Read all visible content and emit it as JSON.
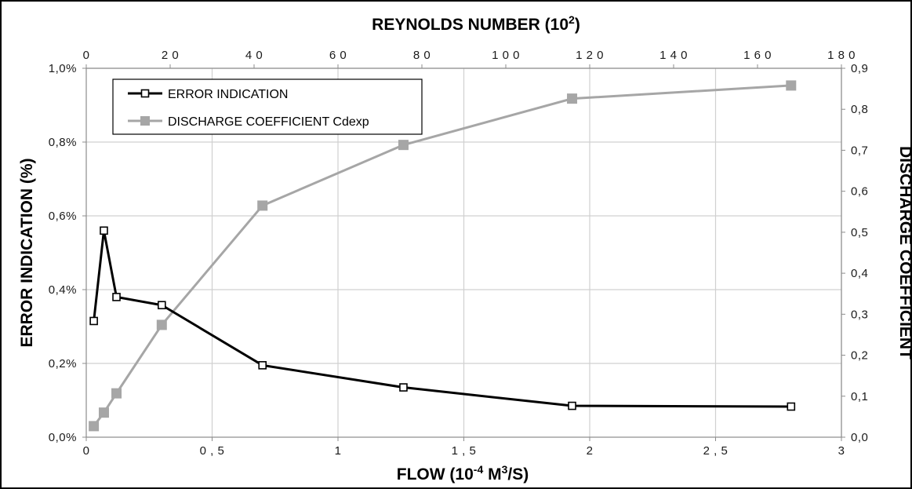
{
  "chart_data": {
    "type": "line",
    "title": "",
    "x_bottom": {
      "label": "FLOW (10-4 M3/S)",
      "label_parts": [
        "FLOW (10",
        "-4",
        " M",
        "3",
        "/S)"
      ],
      "range": [
        0,
        3
      ],
      "ticks": [
        0,
        0.5,
        1,
        1.5,
        2,
        2.5,
        3
      ],
      "tick_labels": [
        "0",
        "0 , 5",
        "1",
        "1 , 5",
        "2",
        "2 , 5",
        "3"
      ]
    },
    "x_top": {
      "label": "REYNOLDS NUMBER (102)",
      "label_parts": [
        "REYNOLDS NUMBER (10",
        "2",
        ")"
      ],
      "range": [
        0,
        180
      ],
      "ticks": [
        0,
        20,
        40,
        60,
        80,
        100,
        120,
        140,
        160,
        180
      ],
      "tick_labels": [
        "0",
        "2 0",
        "4 0",
        "6 0",
        "8 0",
        "1 0 0",
        "1 2 0",
        "1 4 0",
        "1 6 0",
        "1 8 0"
      ]
    },
    "y_left": {
      "label": "ERROR INDICATION (%)",
      "range": [
        0,
        1.0
      ],
      "ticks": [
        0,
        0.2,
        0.4,
        0.6,
        0.8,
        1.0
      ],
      "tick_labels": [
        "0,0%",
        "0,2%",
        "0,4%",
        "0,6%",
        "0,8%",
        "1,0%"
      ]
    },
    "y_right": {
      "label": "DISCHARGE COEFFICIENT",
      "range": [
        0,
        0.9
      ],
      "ticks": [
        0,
        0.1,
        0.2,
        0.3,
        0.4,
        0.5,
        0.6,
        0.7,
        0.8,
        0.9
      ],
      "tick_labels": [
        "0,0",
        "0,1",
        "0,2",
        "0,3",
        "0,4",
        "0,5",
        "0,6",
        "0,7",
        "0,8",
        "0,9"
      ]
    },
    "grid": true,
    "legend_position": "top-left",
    "series": [
      {
        "name": "ERROR INDICATION",
        "axis": "left",
        "color": "#000000",
        "marker": "hollow-square",
        "x": [
          0.03,
          0.07,
          0.12,
          0.3,
          0.7,
          1.26,
          1.93,
          2.8
        ],
        "y": [
          0.315,
          0.56,
          0.38,
          0.358,
          0.195,
          0.135,
          0.085,
          0.083
        ]
      },
      {
        "name": "DISCHARGE COEFFICIENT Cdexp",
        "axis": "right",
        "color": "#a6a6a6",
        "marker": "filled-square",
        "x": [
          0.03,
          0.07,
          0.12,
          0.3,
          0.7,
          1.26,
          1.93,
          2.8
        ],
        "y": [
          0.027,
          0.06,
          0.107,
          0.274,
          0.565,
          0.713,
          0.826,
          0.858
        ]
      }
    ]
  }
}
